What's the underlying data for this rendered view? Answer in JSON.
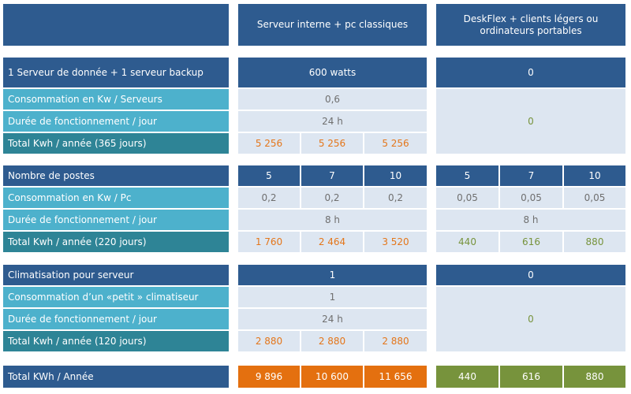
{
  "header": {
    "col1": "Serveur interne + pc classiques",
    "col2": "DeskFlex + clients légers ou ordinateurs portables"
  },
  "servers": {
    "title": "1 Serveur de donnée  + 1 serveur backup",
    "power_classic": "600 watts",
    "power_deskflex": "0",
    "consumption_label": "Consommation en Kw / Serveurs",
    "consumption_value": "0,6",
    "duration_label": "Durée de fonctionnement / jour",
    "duration_value": "24 h",
    "deskflex_value": "0",
    "total_label": "Total Kwh / année (365 jours)",
    "totals": [
      "5 256",
      "5 256",
      "5 256"
    ]
  },
  "workstations": {
    "title": "Nombre de postes",
    "counts": [
      "5",
      "7",
      "10",
      "5",
      "7",
      "10"
    ],
    "consumption_label": "Consommation en Kw / Pc",
    "consumption_classic": [
      "0,2",
      "0,2",
      "0,2"
    ],
    "consumption_deskflex": [
      "0,05",
      "0,05",
      "0,05"
    ],
    "duration_label": "Durée de fonctionnement / jour",
    "duration_classic": "8 h",
    "duration_deskflex": "8 h",
    "total_label": "Total  Kwh / année (220 jours)",
    "totals_classic": [
      "1 760",
      "2 464",
      "3 520"
    ],
    "totals_deskflex": [
      "440",
      "616",
      "880"
    ]
  },
  "cooling": {
    "title": "Climatisation pour serveur",
    "count_classic": "1",
    "count_deskflex": "0",
    "consumption_label": "Consommation d’un «petit » climatiseur",
    "consumption_value": "1",
    "duration_label": "Durée de fonctionnement / jour",
    "duration_value": "24 h",
    "deskflex_value": "0",
    "total_label": "Total  Kwh / année (120 jours)",
    "totals": [
      "2 880",
      "2 880",
      "2 880"
    ]
  },
  "grand_total": {
    "label": "Total  KWh / Année",
    "classic": [
      "9 896",
      "10 600",
      "11 656"
    ],
    "deskflex": [
      "440",
      "616",
      "880"
    ]
  },
  "colors": {
    "dark_blue": "#2e5b8f",
    "light_blue": "#4db1cc",
    "teal": "#2e8496",
    "pale_blue": "#dde6f1",
    "orange": "#e4700f",
    "green": "#77933c"
  }
}
